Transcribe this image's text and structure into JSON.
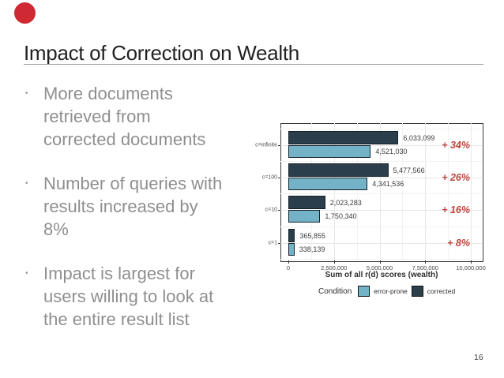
{
  "slide": {
    "logo_color": "#cf2a34",
    "title": "Impact of Correction on Wealth",
    "bullets": [
      "More documents retrieved from corrected documents",
      "Number of queries with results increased by 8%",
      "Impact is largest for users willing to look at the entire result list"
    ],
    "page_number": "16"
  },
  "chart_data": {
    "type": "bar",
    "orientation": "horizontal",
    "xlabel": "Sum of all r(d) scores (wealth)",
    "xlim": [
      0,
      10000000
    ],
    "x_ticks": [
      {
        "value": 0,
        "label": "0"
      },
      {
        "value": 2500000,
        "label": "2,500,000"
      },
      {
        "value": 5000000,
        "label": "5,000,000"
      },
      {
        "value": 7500000,
        "label": "7,500,000"
      },
      {
        "value": 10000000,
        "label": "10,000,000"
      }
    ],
    "categories": [
      "c=infinite",
      "c=100",
      "c=10",
      "c=1"
    ],
    "series": [
      {
        "name": "corrected",
        "color": "#2a3e4b",
        "values": [
          6033099,
          5477566,
          2023283,
          365855
        ],
        "value_labels": [
          "6,033,099",
          "5,477,566",
          "2,023,283",
          "365,855"
        ]
      },
      {
        "name": "error-prone",
        "color": "#74b2c8",
        "values": [
          4521030,
          4341536,
          1750340,
          338139
        ],
        "value_labels": [
          "4,521,030",
          "4,341,536",
          "1,750,340",
          "338,139"
        ]
      }
    ],
    "annotations": {
      "pct_labels": [
        "+ 34%",
        "+ 26%",
        "+ 16%",
        "+ 8%"
      ],
      "color": "#c1473f"
    },
    "legend": {
      "title": "Condition",
      "position": "bottom",
      "entries": [
        {
          "label": "error-prone",
          "color": "#74b2c8"
        },
        {
          "label": "corrected",
          "color": "#2a3e4b"
        }
      ]
    },
    "grid": true
  }
}
